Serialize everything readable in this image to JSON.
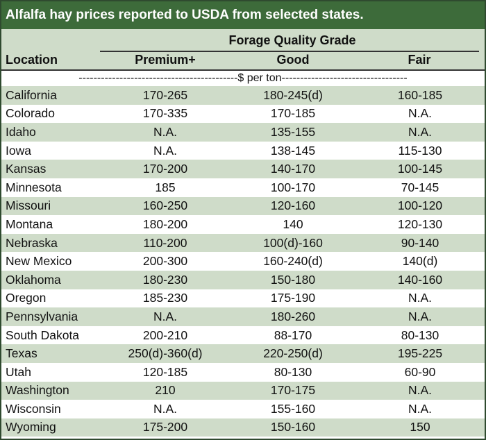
{
  "title": "Alfalfa hay prices reported to USDA from selected states.",
  "group_header": "Forage Quality Grade",
  "columns": [
    "Location",
    "Premium+",
    "Good",
    "Fair"
  ],
  "units_line": "-------------------------------------------$ per ton----------------------------------",
  "rows": [
    [
      "California",
      "170-265",
      "180-245(d)",
      "160-185"
    ],
    [
      "Colorado",
      "170-335",
      "170-185",
      "N.A."
    ],
    [
      "Idaho",
      "N.A.",
      "135-155",
      "N.A."
    ],
    [
      "Iowa",
      "N.A.",
      "138-145",
      "115-130"
    ],
    [
      "Kansas",
      "170-200",
      "140-170",
      "100-145"
    ],
    [
      "Minnesota",
      "185",
      "100-170",
      "70-145"
    ],
    [
      "Missouri",
      "160-250",
      "120-160",
      "100-120"
    ],
    [
      "Montana",
      "180-200",
      "140",
      "120-130"
    ],
    [
      "Nebraska",
      "110-200",
      "100(d)-160",
      "90-140"
    ],
    [
      "New Mexico",
      "200-300",
      "160-240(d)",
      "140(d)"
    ],
    [
      "Oklahoma",
      "180-230",
      "150-180",
      "140-160"
    ],
    [
      "Oregon",
      "185-230",
      "175-190",
      "N.A."
    ],
    [
      "Pennsylvania",
      "N.A.",
      "180-260",
      "N.A."
    ],
    [
      "South Dakota",
      "200-210",
      "88-170",
      "80-130"
    ],
    [
      "Texas",
      "250(d)-360(d)",
      "220-250(d)",
      "195-225"
    ],
    [
      "Utah",
      "120-185",
      "80-130",
      "60-90"
    ],
    [
      "Washington",
      "210",
      "170-175",
      "N.A."
    ],
    [
      "Wisconsin",
      "N.A.",
      "155-160",
      "N.A."
    ],
    [
      "Wyoming",
      "175-200",
      "150-160",
      "150"
    ]
  ],
  "colors": {
    "title_bg": "#3d6b3a",
    "band": "#cfdcc9",
    "border": "#2f4a2f"
  }
}
